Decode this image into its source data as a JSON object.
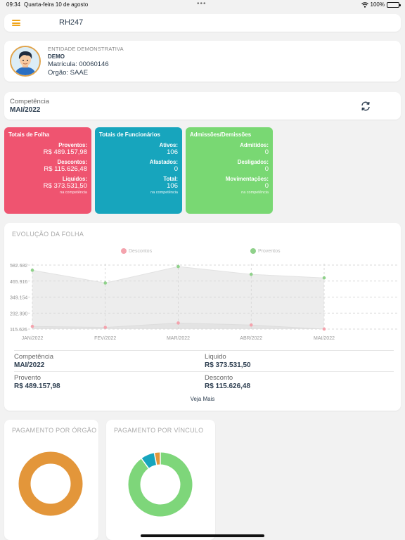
{
  "statusbar": {
    "time": "09:34",
    "date": "Quarta-feira 10 de agosto",
    "battery": "100%"
  },
  "header": {
    "title": "RH247"
  },
  "profile": {
    "entity": "ENTIDADE DEMONSTRATIVA",
    "name": "DEMO",
    "matricula": "Matrícula: 00060146",
    "orgao": "Orgão: SAAE"
  },
  "competencia": {
    "label": "Competência",
    "value": "MAI/2022"
  },
  "cards": {
    "folha": {
      "title": "Totais de Folha",
      "proventos_label": "Proventos:",
      "proventos_value": "R$ 489.157,98",
      "descontos_label": "Descontos:",
      "descontos_value": "R$ 115.626,48",
      "liquidos_label": "Liquidos:",
      "liquidos_value": "R$ 373.531,50",
      "note": "na competência",
      "color": "#ef5470"
    },
    "funcionarios": {
      "title": "Totais de Funcionários",
      "ativos_label": "Ativos:",
      "ativos_value": "106",
      "afastados_label": "Afastados:",
      "afastados_value": "0",
      "total_label": "Total:",
      "total_value": "106",
      "note": "na competência",
      "color": "#17a5bd"
    },
    "admissoes": {
      "title": "Admissões/Demissões",
      "admitidos_label": "Admitidos:",
      "admitidos_value": "0",
      "desligados_label": "Desligados:",
      "desligados_value": "0",
      "movimentacoes_label": "Movimentações:",
      "movimentacoes_value": "0",
      "note": "na competência",
      "color": "#79d873"
    }
  },
  "evolucao": {
    "title": "EVOLUÇÃO DA FOLHA",
    "veja_mais": "Veja Mais",
    "stats": {
      "competencia_label": "Competência",
      "competencia_value": "MAI/2022",
      "liquido_label": "Liquido",
      "liquido_value": "R$ 373.531,50",
      "provento_label": "Provento",
      "provento_value": "R$ 489.157,98",
      "desconto_label": "Desconto",
      "desconto_value": "R$ 115.626,48"
    }
  },
  "chart_data": {
    "type": "area",
    "x": [
      "JAN/2022",
      "FEV/2022",
      "MAR/2022",
      "ABR/2022",
      "MAI/2022"
    ],
    "y_ticks": [
      "582.682",
      "465.916",
      "349.154",
      "232.390",
      "115.626"
    ],
    "ylim": [
      115626,
      582682
    ],
    "series": [
      {
        "name": "Descontos",
        "color": "#f4a3ad",
        "values": [
          135000,
          128000,
          160000,
          145000,
          115626
        ]
      },
      {
        "name": "Proventos",
        "color": "#8fd18a",
        "values": [
          545000,
          452000,
          572000,
          515000,
          489158
        ]
      }
    ],
    "grid": true,
    "legend": "top"
  },
  "pagamento_orgao": {
    "title": "PAGAMENTO POR ÓRGÃO",
    "slices": [
      1
    ],
    "colors": [
      "#e3963a"
    ]
  },
  "pagamento_vinculo": {
    "title": "PAGAMENTO POR VÍNCULO",
    "slices": [
      0.9,
      0.07,
      0.03
    ],
    "colors": [
      "#7ed67a",
      "#17a5bd",
      "#e3963a"
    ]
  },
  "icons": {
    "menu": "menu-icon",
    "refresh": "refresh-icon",
    "wifi": "wifi-icon",
    "battery": "battery-icon"
  }
}
